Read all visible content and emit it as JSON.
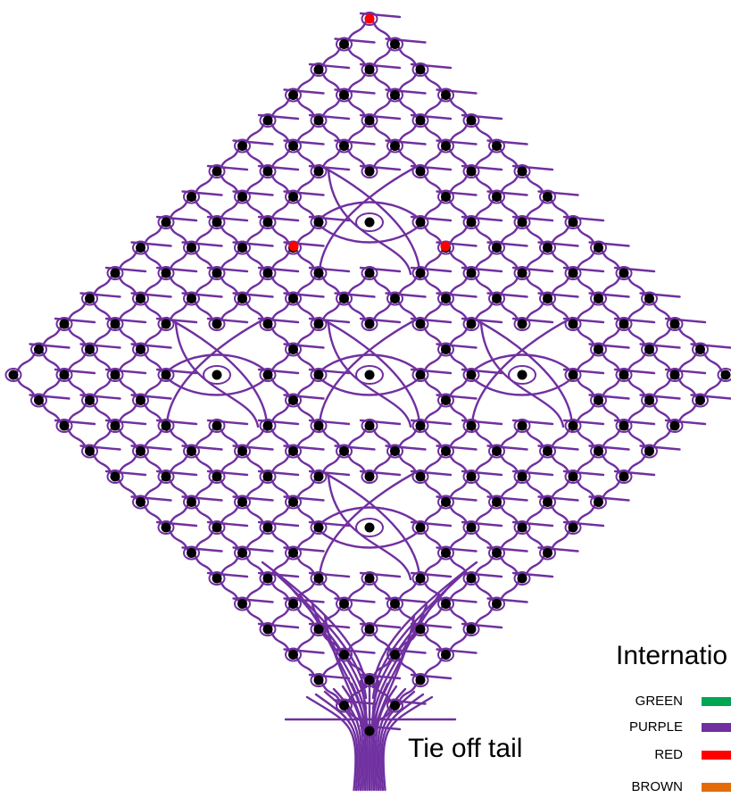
{
  "diagram": {
    "caption": "Tie off tail",
    "legend_title": "Internatio",
    "legend": [
      {
        "label": "GREEN",
        "color": "#00a651"
      },
      {
        "label": "PURPLE",
        "color": "#7030a0"
      },
      {
        "label": "RED",
        "color": "#ff0000"
      },
      {
        "label": "BROWN",
        "color": "#e36c09"
      }
    ],
    "colors": {
      "thread": "#7030a0",
      "pin": "#000000",
      "start_pin": "#ff0000"
    }
  }
}
